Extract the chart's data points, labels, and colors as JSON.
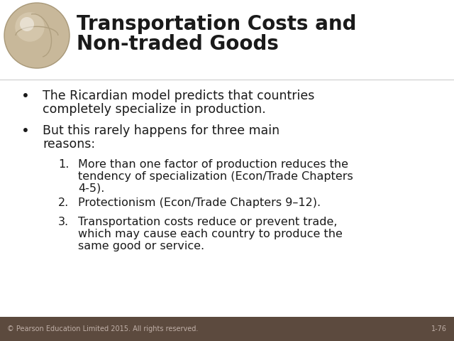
{
  "title_line1": "Transportation Costs and",
  "title_line2": "Non-traded Goods",
  "title_fontsize": 20,
  "background_color": "#ffffff",
  "footer_bg_color": "#5c4a3e",
  "footer_text": "© Pearson Education Limited 2015. All rights reserved.",
  "footer_right": "1-76",
  "footer_fontsize": 7,
  "footer_text_color": "#c0b0a8",
  "bullet1_line1": "The Ricardian model predicts that countries",
  "bullet1_line2": "completely specialize in production.",
  "bullet2_line1": "But this rarely happens for three main",
  "bullet2_line2": "reasons:",
  "numbered1_line1": "More than one factor of production reduces the",
  "numbered1_line2": "tendency of specialization (Econ/Trade Chapters",
  "numbered1_line3": "4-5).",
  "numbered2": "Protectionism (Econ/Trade Chapters 9–12).",
  "numbered3_line1": "Transportation costs reduce or prevent trade,",
  "numbered3_line2": "which may cause each country to produce the",
  "numbered3_line3": "same good or service.",
  "body_fontsize": 12.5,
  "numbered_fontsize": 11.5,
  "text_color": "#1a1a1a",
  "font_family": "DejaVu Sans"
}
